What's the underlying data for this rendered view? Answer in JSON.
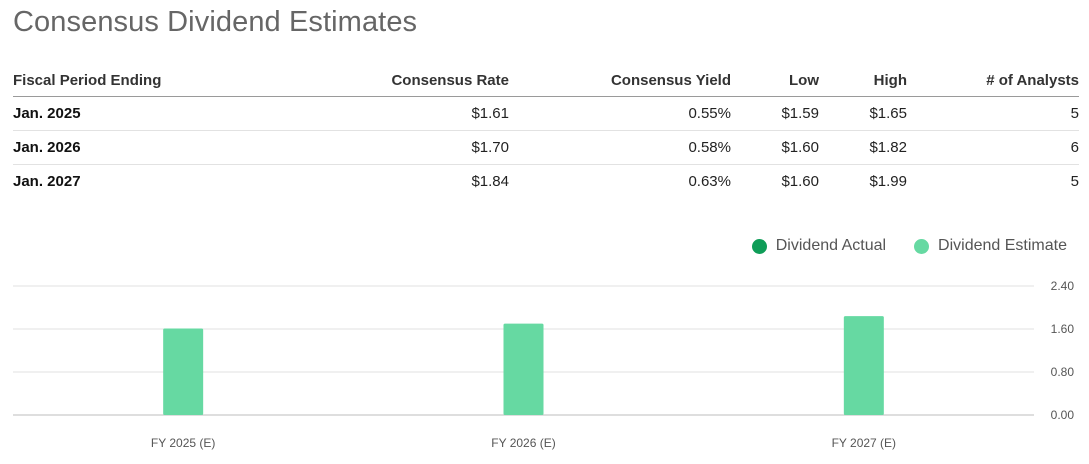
{
  "title": "Consensus Dividend Estimates",
  "table": {
    "headers": [
      "Fiscal Period Ending",
      "Consensus Rate",
      "Consensus Yield",
      "Low",
      "High",
      "# of Analysts"
    ],
    "rows": [
      [
        "Jan. 2025",
        "$1.61",
        "0.55%",
        "$1.59",
        "$1.65",
        "5"
      ],
      [
        "Jan. 2026",
        "$1.70",
        "0.58%",
        "$1.60",
        "$1.82",
        "6"
      ],
      [
        "Jan. 2027",
        "$1.84",
        "0.63%",
        "$1.60",
        "$1.99",
        "5"
      ]
    ]
  },
  "legend": [
    {
      "label": "Dividend Actual",
      "color": "#0f9d58"
    },
    {
      "label": "Dividend Estimate",
      "color": "#66d9a2"
    }
  ],
  "chart_data": {
    "type": "bar",
    "categories": [
      "FY 2025 (E)",
      "FY 2026 (E)",
      "FY 2027 (E)"
    ],
    "series": [
      {
        "name": "Dividend Estimate",
        "color": "#66d9a2",
        "values": [
          1.61,
          1.7,
          1.84
        ]
      }
    ],
    "ylim": [
      0,
      2.4
    ],
    "yticks": [
      "0.00",
      "0.80",
      "1.60",
      "2.40"
    ],
    "grid": true,
    "legend_position": "top-right"
  }
}
